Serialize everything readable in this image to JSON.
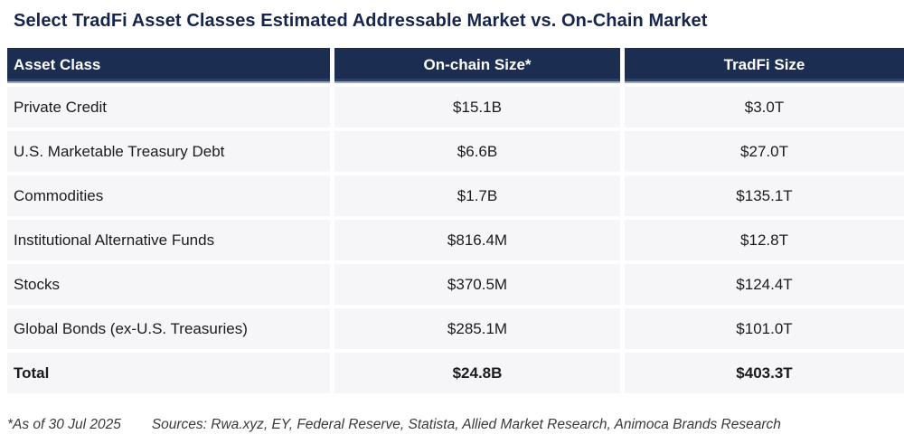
{
  "title": "Select TradFi Asset Classes Estimated Addressable Market vs. On-Chain Market",
  "chart_data": {
    "type": "table",
    "title": "Select TradFi Asset Classes Estimated Addressable Market vs. On-Chain Market",
    "columns": [
      "Asset Class",
      "On-chain Size*",
      "TradFi Size"
    ],
    "rows": [
      {
        "asset_class": "Private Credit",
        "onchain_size": "$15.1B",
        "tradfi_size": "$3.0T",
        "is_total": false
      },
      {
        "asset_class": "U.S. Marketable Treasury Debt",
        "onchain_size": "$6.6B",
        "tradfi_size": "$27.0T",
        "is_total": false
      },
      {
        "asset_class": "Commodities",
        "onchain_size": "$1.7B",
        "tradfi_size": "$135.1T",
        "is_total": false
      },
      {
        "asset_class": "Institutional Alternative Funds",
        "onchain_size": "$816.4M",
        "tradfi_size": "$12.8T",
        "is_total": false
      },
      {
        "asset_class": "Stocks",
        "onchain_size": "$370.5M",
        "tradfi_size": "$124.4T",
        "is_total": false
      },
      {
        "asset_class": "Global Bonds (ex-U.S. Treasuries)",
        "onchain_size": "$285.1M",
        "tradfi_size": "$101.0T",
        "is_total": false
      },
      {
        "asset_class": "Total",
        "onchain_size": "$24.8B",
        "tradfi_size": "$403.3T",
        "is_total": true
      }
    ]
  },
  "footer": {
    "as_of": "*As of 30 Jul 2025",
    "sources": "Sources: Rwa.xyz, EY, Federal Reserve, Statista, Allied Market Research, Animoca Brands Research"
  },
  "colors": {
    "header_bg": "#1b2e52",
    "header_border_light": "#9aabc6",
    "header_border_dark": "#2c4369",
    "title_color": "#16254c",
    "row_bg": "#f6f6f8",
    "cell_text": "#1b1b1d",
    "footer_text": "#39393b"
  }
}
